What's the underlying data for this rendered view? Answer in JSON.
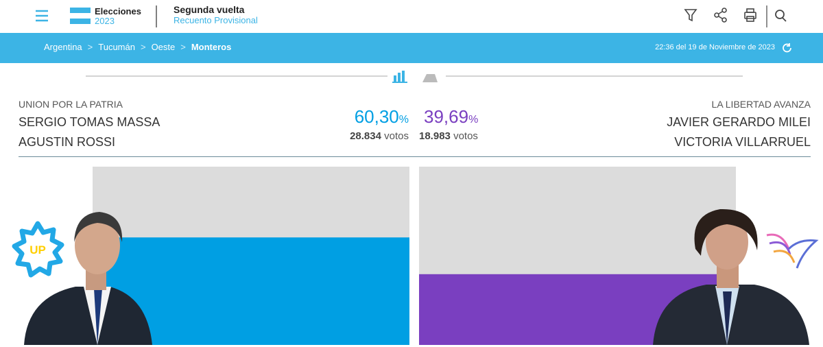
{
  "header": {
    "logo_title": "Elecciones",
    "logo_year": "2023",
    "title": "Segunda vuelta",
    "subtitle": "Recuento Provisional"
  },
  "breadcrumb": [
    "Argentina",
    "Tucumán",
    "Oeste",
    "Monteros"
  ],
  "breadcrumb_separator": ">",
  "timestamp": "22:36 del 19 de Noviembre de 2023",
  "percent_unit": "%",
  "votes_unit": "votos",
  "candidates": [
    {
      "party": "UNION POR LA PATRIA",
      "president": "SERGIO TOMAS MASSA",
      "vice": "AGUSTIN ROSSI",
      "percent": {
        "value": 60.3,
        "label": "60,30"
      },
      "votes": "28.834",
      "color": "#009fe3",
      "badge": "UP"
    },
    {
      "party": "LA LIBERTAD AVANZA",
      "president": "JAVIER GERARDO MILEI",
      "vice": "VICTORIA VILLARRUEL",
      "percent": {
        "value": 39.69,
        "label": "39,69"
      },
      "votes": "18.983",
      "color": "#7a3fc0"
    }
  ]
}
